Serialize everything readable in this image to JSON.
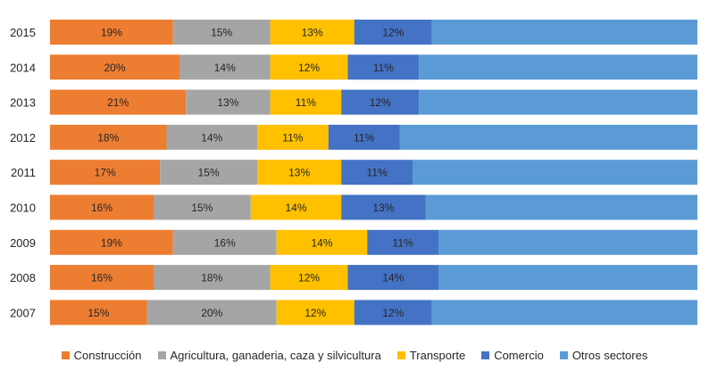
{
  "chart_data": {
    "type": "bar",
    "orientation": "horizontal",
    "stacked": "percent",
    "title": "",
    "xlabel": "",
    "ylabel": "",
    "categories": [
      "2015",
      "2014",
      "2013",
      "2012",
      "2011",
      "2010",
      "2009",
      "2008",
      "2007"
    ],
    "series": [
      {
        "name": "Construcción",
        "color": "#ED7D31",
        "values": [
          19,
          20,
          21,
          18,
          17,
          16,
          19,
          16,
          15
        ]
      },
      {
        "name": "Agricultura, ganaderia, caza y silvicultura",
        "color": "#A5A5A5",
        "values": [
          15,
          14,
          13,
          14,
          15,
          15,
          16,
          18,
          20
        ]
      },
      {
        "name": "Transporte",
        "color": "#FFC000",
        "values": [
          13,
          12,
          11,
          11,
          13,
          14,
          14,
          12,
          12
        ]
      },
      {
        "name": "Comercio",
        "color": "#4472C4",
        "values": [
          12,
          11,
          12,
          11,
          11,
          13,
          11,
          14,
          12
        ]
      },
      {
        "name": "Otros sectores",
        "color": "#5B9BD5",
        "values": [
          41,
          43,
          43,
          46,
          44,
          42,
          40,
          40,
          41
        ]
      }
    ],
    "value_labels": [
      [
        "19%",
        "15%",
        "13%",
        "12%",
        ""
      ],
      [
        "20%",
        "14%",
        "12%",
        "11%",
        ""
      ],
      [
        "21%",
        "13%",
        "11%",
        "12%",
        ""
      ],
      [
        "18%",
        "14%",
        "11%",
        "11%",
        ""
      ],
      [
        "17%",
        "15%",
        "13%",
        "11%",
        ""
      ],
      [
        "16%",
        "15%",
        "14%",
        "13%",
        ""
      ],
      [
        "19%",
        "16%",
        "14%",
        "11%",
        ""
      ],
      [
        "16%",
        "18%",
        "12%",
        "14%",
        ""
      ],
      [
        "15%",
        "20%",
        "12%",
        "12%",
        ""
      ]
    ],
    "xlim": [
      0,
      100
    ],
    "grid": false,
    "legend_position": "bottom"
  }
}
